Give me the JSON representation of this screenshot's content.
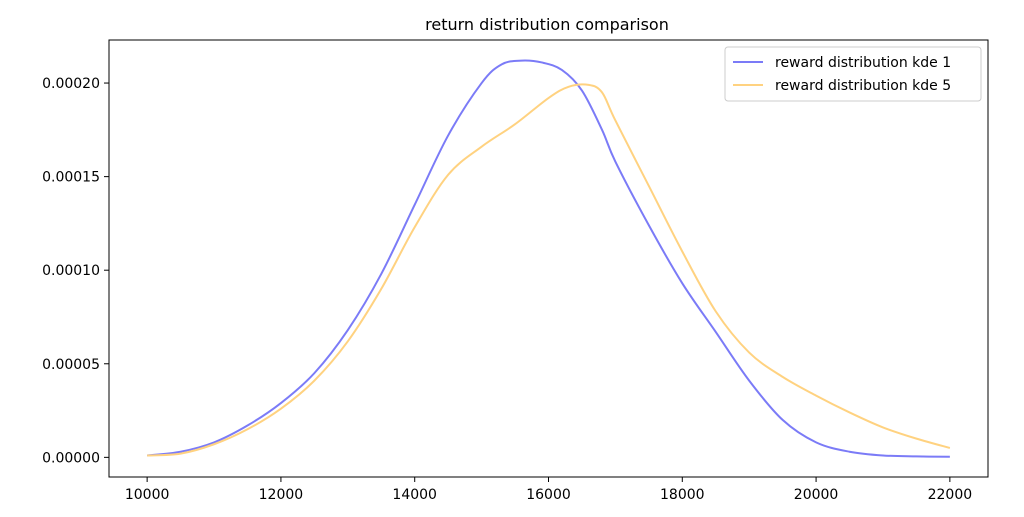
{
  "chart_data": {
    "type": "line",
    "title": "return distribution comparison",
    "xlabel": "",
    "ylabel": "",
    "xlim": [
      9430,
      22570
    ],
    "ylim": [
      -1.05e-05,
      0.000223
    ],
    "xticks": [
      10000,
      12000,
      14000,
      16000,
      18000,
      20000,
      22000
    ],
    "xtick_labels": [
      "10000",
      "12000",
      "14000",
      "16000",
      "18000",
      "20000",
      "22000"
    ],
    "yticks": [
      0,
      5e-05,
      0.0001,
      0.00015,
      0.0002
    ],
    "ytick_labels": [
      "0.00000",
      "0.00005",
      "0.00010",
      "0.00015",
      "0.00020"
    ],
    "grid": false,
    "legend_position": "top-right",
    "series": [
      {
        "name": "reward distribution kde 1",
        "color": "#7b7bf7",
        "x": [
          10000,
          10500,
          11000,
          11500,
          12000,
          12500,
          13000,
          13500,
          14000,
          14500,
          15000,
          15300,
          15600,
          15900,
          16200,
          16500,
          16800,
          17000,
          17500,
          18000,
          18500,
          19000,
          19500,
          20000,
          20500,
          21000,
          21500,
          22000
        ],
        "y": [
          1e-06,
          3e-06,
          8e-06,
          1.7e-05,
          2.9e-05,
          4.5e-05,
          6.8e-05,
          9.8e-05,
          0.000135,
          0.000172,
          0.0002,
          0.00021,
          0.000212,
          0.000211,
          0.000207,
          0.000196,
          0.000175,
          0.000158,
          0.000124,
          9.3e-05,
          6.7e-05,
          4.1e-05,
          2e-05,
          8e-06,
          3e-06,
          1e-06,
          5e-07,
          3e-07
        ]
      },
      {
        "name": "reward distribution kde 5",
        "color": "#ffd280",
        "x": [
          10000,
          10500,
          11000,
          11500,
          12000,
          12500,
          13000,
          13500,
          14000,
          14500,
          15000,
          15500,
          16000,
          16300,
          16600,
          16800,
          17000,
          17500,
          18000,
          18500,
          19000,
          19500,
          20000,
          20500,
          21000,
          21500,
          22000
        ],
        "y": [
          1e-06,
          2e-06,
          7e-06,
          1.5e-05,
          2.6e-05,
          4.1e-05,
          6.2e-05,
          9e-05,
          0.000123,
          0.000151,
          0.000166,
          0.000178,
          0.000192,
          0.000198,
          0.000199,
          0.000195,
          0.00018,
          0.000145,
          0.00011,
          7.8e-05,
          5.6e-05,
          4.3e-05,
          3.3e-05,
          2.4e-05,
          1.6e-05,
          1e-05,
          5e-06
        ]
      }
    ]
  }
}
